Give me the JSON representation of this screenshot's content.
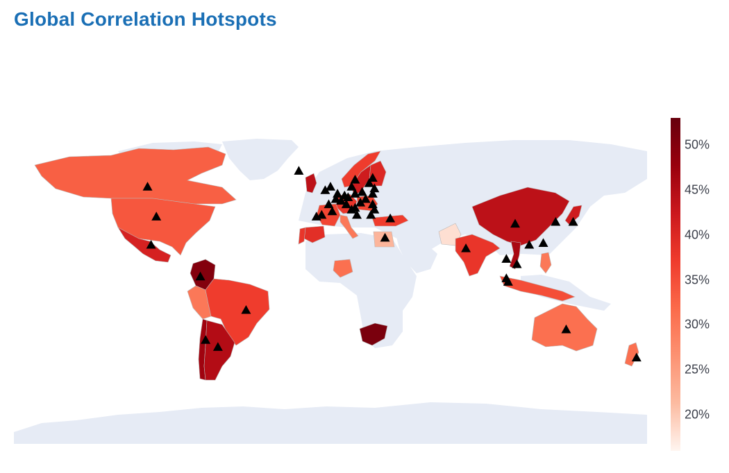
{
  "title": "Global Correlation Hotspots",
  "legend": {
    "ticks": [
      "20%",
      "25%",
      "30%",
      "35%",
      "40%",
      "45%",
      "50%"
    ],
    "tick_values": [
      20,
      25,
      30,
      35,
      40,
      45,
      50
    ],
    "min": 16,
    "max": 53,
    "colors": [
      "#fff5f0",
      "#fcbba1",
      "#fc9272",
      "#fb6a4a",
      "#ef3b2c",
      "#cb181d",
      "#99000d",
      "#67000d"
    ]
  },
  "map": {
    "land_color": "#e6ebf5",
    "marker_symbol": "triangle-up",
    "marker_color": "#000000",
    "countries": [
      {
        "name": "Canada",
        "value": 33
      },
      {
        "name": "United States",
        "value": 34
      },
      {
        "name": "Mexico",
        "value": 41
      },
      {
        "name": "Colombia",
        "value": 50
      },
      {
        "name": "Peru",
        "value": 30
      },
      {
        "name": "Brazil",
        "value": 37
      },
      {
        "name": "Chile",
        "value": 47
      },
      {
        "name": "Argentina",
        "value": 45
      },
      {
        "name": "United Kingdom",
        "value": 44
      },
      {
        "name": "Norway",
        "value": 37
      },
      {
        "name": "Sweden",
        "value": 42
      },
      {
        "name": "Finland",
        "value": 40
      },
      {
        "name": "Germany",
        "value": 38
      },
      {
        "name": "France",
        "value": 36
      },
      {
        "name": "Spain",
        "value": 39
      },
      {
        "name": "Portugal",
        "value": 38
      },
      {
        "name": "Italy",
        "value": 30
      },
      {
        "name": "Poland",
        "value": 36
      },
      {
        "name": "Turkey",
        "value": 37
      },
      {
        "name": "Egypt",
        "value": 22
      },
      {
        "name": "Nigeria",
        "value": 31
      },
      {
        "name": "South Africa",
        "value": 51
      },
      {
        "name": "Pakistan",
        "value": 18
      },
      {
        "name": "India",
        "value": 38
      },
      {
        "name": "China",
        "value": 44
      },
      {
        "name": "Japan",
        "value": 42
      },
      {
        "name": "Vietnam",
        "value": 46
      },
      {
        "name": "Indonesia",
        "value": 35
      },
      {
        "name": "Philippines",
        "value": 30
      },
      {
        "name": "Australia",
        "value": 31
      },
      {
        "name": "New Zealand",
        "value": 31
      }
    ],
    "markers": [
      {
        "lon": -104,
        "lat": 56
      },
      {
        "lon": -99,
        "lat": 39
      },
      {
        "lon": -102,
        "lat": 23
      },
      {
        "lon": -74,
        "lat": 5
      },
      {
        "lon": -48,
        "lat": -14
      },
      {
        "lon": -71,
        "lat": -31
      },
      {
        "lon": -64,
        "lat": -35
      },
      {
        "lon": -18,
        "lat": 65
      },
      {
        "lon": -3,
        "lat": 54
      },
      {
        "lon": 0,
        "lat": 56
      },
      {
        "lon": 4,
        "lat": 52
      },
      {
        "lon": 8,
        "lat": 51
      },
      {
        "lon": 10,
        "lat": 50
      },
      {
        "lon": 14,
        "lat": 52
      },
      {
        "lon": 18,
        "lat": 53
      },
      {
        "lon": 12,
        "lat": 56
      },
      {
        "lon": 14,
        "lat": 60
      },
      {
        "lon": 22,
        "lat": 58
      },
      {
        "lon": 24,
        "lat": 61
      },
      {
        "lon": 25,
        "lat": 55
      },
      {
        "lon": 24,
        "lat": 52
      },
      {
        "lon": 20,
        "lat": 49
      },
      {
        "lon": 17,
        "lat": 47
      },
      {
        "lon": 14,
        "lat": 44
      },
      {
        "lon": 12,
        "lat": 43
      },
      {
        "lon": 9,
        "lat": 46
      },
      {
        "lon": 6,
        "lat": 48
      },
      {
        "lon": 3,
        "lat": 49
      },
      {
        "lon": -1,
        "lat": 46
      },
      {
        "lon": -5,
        "lat": 40
      },
      {
        "lon": -8,
        "lat": 39
      },
      {
        "lon": 1,
        "lat": 42
      },
      {
        "lon": 15,
        "lat": 40
      },
      {
        "lon": 24,
        "lat": 46
      },
      {
        "lon": 25,
        "lat": 43
      },
      {
        "lon": 23,
        "lat": 40
      },
      {
        "lon": 34,
        "lat": 38
      },
      {
        "lon": 31,
        "lat": 27
      },
      {
        "lon": 77,
        "lat": 21
      },
      {
        "lon": 105,
        "lat": 35
      },
      {
        "lon": 100,
        "lat": 15
      },
      {
        "lon": 106,
        "lat": 12
      },
      {
        "lon": 100,
        "lat": 4
      },
      {
        "lon": 101,
        "lat": 2
      },
      {
        "lon": 113,
        "lat": 23
      },
      {
        "lon": 121,
        "lat": 24
      },
      {
        "lon": 128,
        "lat": 36
      },
      {
        "lon": 138,
        "lat": 36
      },
      {
        "lon": 134,
        "lat": -25
      },
      {
        "lon": 174,
        "lat": -41
      }
    ]
  }
}
